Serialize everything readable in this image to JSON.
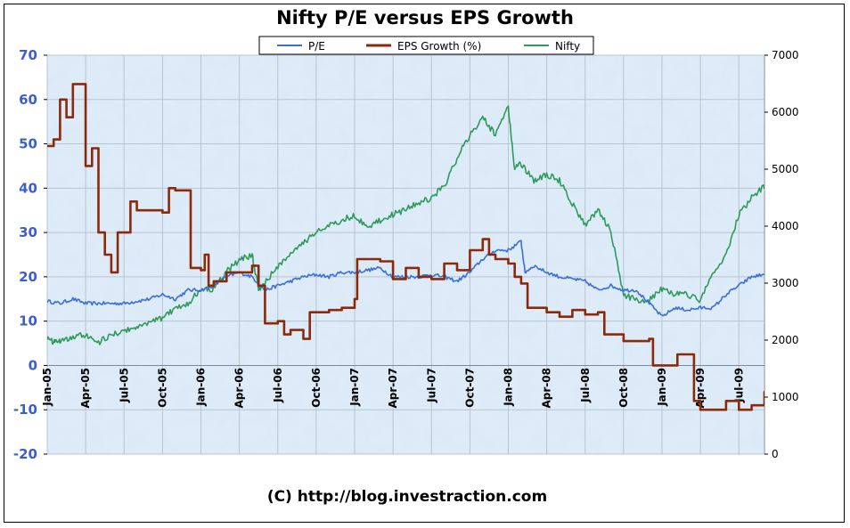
{
  "title": "Nifty P/E versus EPS Growth",
  "footer": "(C) http://blog.investraction.com",
  "colors": {
    "pe": "#3b6fd8",
    "eps": "#8b2a0a",
    "nifty": "#2e9a5c",
    "left_axis_text": "#3a5fcd",
    "plot_bg": "#d8e7f6",
    "grid": "#b8c4d0"
  },
  "chart_data": {
    "type": "line",
    "title": "Nifty P/E versus EPS Growth",
    "x_tick_labels": [
      "Jan-05",
      "Apr-05",
      "Jul-05",
      "Oct-05",
      "Jan-06",
      "Apr-06",
      "Jul-06",
      "Oct-06",
      "Jan-07",
      "Apr-07",
      "Jul-07",
      "Oct-07",
      "Jan-08",
      "Apr-08",
      "Jul-08",
      "Oct-08",
      "Jan-09",
      "Apr-09",
      "Jul-09"
    ],
    "x_range_months": [
      0,
      56
    ],
    "left_axis": {
      "range": [
        -20,
        70
      ],
      "ticks": [
        -20,
        -10,
        0,
        10,
        20,
        30,
        40,
        50,
        60,
        70
      ]
    },
    "right_axis": {
      "range": [
        0,
        7000
      ],
      "ticks": [
        0,
        1000,
        2000,
        3000,
        4000,
        5000,
        6000,
        7000
      ]
    },
    "series": [
      {
        "name": "P/E",
        "axis": "left",
        "points": [
          [
            0,
            14.5
          ],
          [
            1,
            14
          ],
          [
            2,
            15
          ],
          [
            3,
            14
          ],
          [
            4,
            14
          ],
          [
            5,
            14
          ],
          [
            6,
            14
          ],
          [
            7,
            14.5
          ],
          [
            8,
            15
          ],
          [
            9,
            16
          ],
          [
            10,
            15
          ],
          [
            11,
            17
          ],
          [
            12,
            17
          ],
          [
            13,
            18
          ],
          [
            14,
            20
          ],
          [
            15,
            21
          ],
          [
            16,
            20
          ],
          [
            17,
            17
          ],
          [
            18,
            18
          ],
          [
            19,
            19
          ],
          [
            20,
            20
          ],
          [
            21,
            20.5
          ],
          [
            22,
            20
          ],
          [
            23,
            21
          ],
          [
            24,
            21
          ],
          [
            25,
            21.5
          ],
          [
            26,
            22
          ],
          [
            27,
            20
          ],
          [
            28,
            20
          ],
          [
            29,
            20
          ],
          [
            30,
            20.5
          ],
          [
            31,
            20
          ],
          [
            32,
            19
          ],
          [
            33,
            21
          ],
          [
            34,
            24
          ],
          [
            35,
            26
          ],
          [
            36,
            26
          ],
          [
            37,
            28
          ],
          [
            37.3,
            21
          ],
          [
            38,
            22.5
          ],
          [
            39,
            21
          ],
          [
            40,
            20
          ],
          [
            41,
            19.5
          ],
          [
            42,
            19
          ],
          [
            43,
            17
          ],
          [
            44,
            18
          ],
          [
            45,
            17
          ],
          [
            46,
            17
          ],
          [
            47,
            14
          ],
          [
            48,
            11
          ],
          [
            49,
            13
          ],
          [
            50,
            12.5
          ],
          [
            51,
            13
          ],
          [
            52,
            13
          ],
          [
            53,
            16
          ],
          [
            54,
            18
          ],
          [
            55,
            20
          ],
          [
            56,
            20.5
          ]
        ]
      },
      {
        "name": "EPS Growth (%)",
        "axis": "left",
        "points": [
          [
            0,
            49.5
          ],
          [
            0.5,
            51
          ],
          [
            1,
            60
          ],
          [
            1.5,
            56
          ],
          [
            2,
            63.5
          ],
          [
            2.8,
            63.5
          ],
          [
            3,
            45
          ],
          [
            3.5,
            49
          ],
          [
            4,
            30
          ],
          [
            4.5,
            25
          ],
          [
            5,
            21
          ],
          [
            5.5,
            30
          ],
          [
            6,
            30
          ],
          [
            6.5,
            37
          ],
          [
            7,
            35
          ],
          [
            8,
            35
          ],
          [
            9,
            34.5
          ],
          [
            9.5,
            40
          ],
          [
            10,
            39.5
          ],
          [
            11,
            39.5
          ],
          [
            11.2,
            22
          ],
          [
            12,
            21.5
          ],
          [
            12.3,
            25
          ],
          [
            12.6,
            18
          ],
          [
            13,
            19
          ],
          [
            14,
            21
          ],
          [
            15,
            21
          ],
          [
            16,
            22.5
          ],
          [
            16.5,
            18
          ],
          [
            17,
            9.5
          ],
          [
            18,
            10
          ],
          [
            18.5,
            7
          ],
          [
            19,
            8
          ],
          [
            20,
            6
          ],
          [
            20.5,
            12
          ],
          [
            21,
            12
          ],
          [
            22,
            12.5
          ],
          [
            23,
            13
          ],
          [
            24,
            15
          ],
          [
            24.2,
            24
          ],
          [
            25,
            24
          ],
          [
            26,
            23.5
          ],
          [
            27,
            19.5
          ],
          [
            28,
            22
          ],
          [
            29,
            20
          ],
          [
            30,
            19.5
          ],
          [
            31,
            23
          ],
          [
            32,
            21.5
          ],
          [
            33,
            26
          ],
          [
            34,
            28.5
          ],
          [
            34.5,
            25
          ],
          [
            35,
            24
          ],
          [
            36,
            23
          ],
          [
            36.5,
            20
          ],
          [
            37,
            18.5
          ],
          [
            37.5,
            13
          ],
          [
            38,
            13
          ],
          [
            39,
            12
          ],
          [
            40,
            11
          ],
          [
            41,
            12.5
          ],
          [
            42,
            11.5
          ],
          [
            43,
            12
          ],
          [
            43.5,
            7
          ],
          [
            44,
            7
          ],
          [
            45,
            5.5
          ],
          [
            46,
            5.5
          ],
          [
            47,
            6
          ],
          [
            47.3,
            0
          ],
          [
            48,
            0
          ],
          [
            49,
            0
          ],
          [
            49.2,
            2.5
          ],
          [
            50,
            2.5
          ],
          [
            50.5,
            -8
          ],
          [
            51,
            -10
          ],
          [
            52,
            -10
          ],
          [
            53,
            -8
          ],
          [
            54,
            -10
          ],
          [
            55,
            -9
          ],
          [
            56,
            -6
          ],
          [
            57,
            -6
          ]
        ]
      },
      {
        "name": "Nifty",
        "axis": "right",
        "points": [
          [
            0,
            2050
          ],
          [
            0.5,
            1950
          ],
          [
            1,
            2000
          ],
          [
            2,
            2050
          ],
          [
            3,
            2100
          ],
          [
            4,
            1950
          ],
          [
            5,
            2100
          ],
          [
            6,
            2150
          ],
          [
            7,
            2250
          ],
          [
            8,
            2300
          ],
          [
            9,
            2400
          ],
          [
            10,
            2550
          ],
          [
            11,
            2650
          ],
          [
            12,
            2900
          ],
          [
            13,
            2900
          ],
          [
            14,
            3200
          ],
          [
            15,
            3400
          ],
          [
            16,
            3500
          ],
          [
            16.5,
            2900
          ],
          [
            17,
            3000
          ],
          [
            18,
            3300
          ],
          [
            19,
            3500
          ],
          [
            20,
            3700
          ],
          [
            21,
            3900
          ],
          [
            22,
            4000
          ],
          [
            23,
            4100
          ],
          [
            24,
            4200
          ],
          [
            25,
            3950
          ],
          [
            26,
            4100
          ],
          [
            27,
            4200
          ],
          [
            28,
            4300
          ],
          [
            29,
            4400
          ],
          [
            30,
            4500
          ],
          [
            31,
            4700
          ],
          [
            32,
            5200
          ],
          [
            33,
            5600
          ],
          [
            34,
            5900
          ],
          [
            35,
            5600
          ],
          [
            36,
            6100
          ],
          [
            36.5,
            5000
          ],
          [
            37,
            5100
          ],
          [
            38,
            4800
          ],
          [
            39,
            4900
          ],
          [
            40,
            4800
          ],
          [
            41,
            4400
          ],
          [
            42,
            4000
          ],
          [
            43,
            4300
          ],
          [
            44,
            3900
          ],
          [
            45,
            2800
          ],
          [
            46,
            2700
          ],
          [
            47,
            2700
          ],
          [
            48,
            2900
          ],
          [
            49,
            2800
          ],
          [
            50,
            2800
          ],
          [
            51,
            2700
          ],
          [
            52,
            3200
          ],
          [
            53,
            3500
          ],
          [
            54,
            4200
          ],
          [
            55,
            4500
          ],
          [
            56,
            4700
          ],
          [
            57,
            4800
          ]
        ]
      }
    ]
  }
}
